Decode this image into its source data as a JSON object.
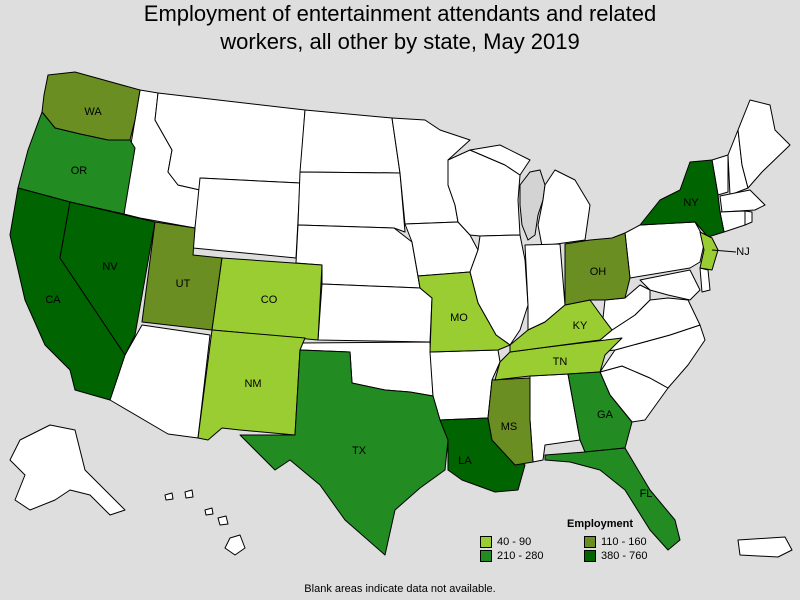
{
  "title_line1": "Employment of entertainment attendants and related",
  "title_line2": "workers, all other by state, May 2019",
  "legend": {
    "title": "Employment",
    "items": [
      {
        "label": "40 - 90",
        "color": "#9acd32"
      },
      {
        "label": "110 - 160",
        "color": "#6b8e23"
      },
      {
        "label": "210 - 280",
        "color": "#228b22"
      },
      {
        "label": "380 - 760",
        "color": "#006400"
      }
    ]
  },
  "note": "Blank areas indicate data not available.",
  "colors": {
    "nodata": "#ffffff",
    "water": "#d3d3d3",
    "background": "#dedede"
  },
  "states": {
    "WA": {
      "label": "WA",
      "range": "110 - 160"
    },
    "OR": {
      "label": "OR",
      "range": "210 - 280"
    },
    "CA": {
      "label": "CA",
      "range": "380 - 760"
    },
    "NV": {
      "label": "NV",
      "range": "380 - 760"
    },
    "UT": {
      "label": "UT",
      "range": "110 - 160"
    },
    "CO": {
      "label": "CO",
      "range": "40 - 90"
    },
    "NM": {
      "label": "NM",
      "range": "40 - 90"
    },
    "TX": {
      "label": "TX",
      "range": "210 - 280"
    },
    "MO": {
      "label": "MO",
      "range": "40 - 90"
    },
    "LA": {
      "label": "LA",
      "range": "380 - 760"
    },
    "MS": {
      "label": "MS",
      "range": "110 - 160"
    },
    "TN": {
      "label": "TN",
      "range": "40 - 90"
    },
    "KY": {
      "label": "KY",
      "range": "40 - 90"
    },
    "OH": {
      "label": "OH",
      "range": "110 - 160"
    },
    "GA": {
      "label": "GA",
      "range": "210 - 280"
    },
    "FL": {
      "label": "FL",
      "range": "210 - 280"
    },
    "NY": {
      "label": "NY",
      "range": "380 - 760"
    },
    "NJ": {
      "label": "NJ",
      "range": "40 - 90"
    }
  }
}
